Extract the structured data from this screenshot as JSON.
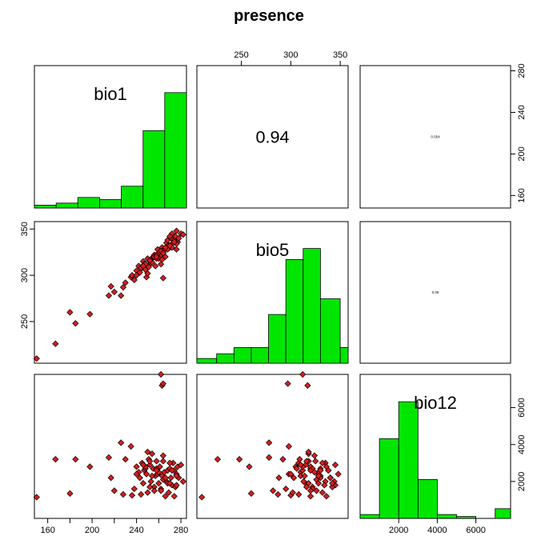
{
  "chart_data": {
    "type": "scatter",
    "title": "presence",
    "variables": [
      "bio1",
      "bio5",
      "bio12"
    ],
    "correlations": [
      {
        "row": 0,
        "col": 1,
        "label": "0.94",
        "value": 0.94
      },
      {
        "row": 0,
        "col": 2,
        "label": "0.054",
        "value": 0.054
      },
      {
        "row": 1,
        "col": 2,
        "label": "0.09",
        "value": 0.09
      }
    ],
    "axes": {
      "bio1": {
        "range": [
          148,
          285
        ],
        "ticks": [
          160,
          200,
          240,
          280
        ],
        "tick_labels": [
          "160",
          "200",
          "240",
          "280"
        ],
        "minor_ticks": [
          180,
          220,
          260
        ]
      },
      "bio5": {
        "range": [
          205,
          358
        ],
        "ticks": [
          250,
          300,
          350
        ],
        "tick_labels": [
          "250",
          "300",
          "350"
        ]
      },
      "bio12": {
        "range": [
          0,
          7800
        ],
        "ticks": [
          2000,
          4000,
          6000
        ],
        "tick_labels": [
          "2000",
          "4000",
          "6000"
        ]
      }
    },
    "tick_sides": {
      "top": "bio5",
      "right_row0": "bio1",
      "left_row1": "bio5",
      "right_row2": "bio12",
      "bottom_col0": "bio1",
      "bottom_col2": "bio12"
    },
    "histograms": {
      "bio1": {
        "bin_edges": [
          148,
          167.6,
          187.1,
          206.7,
          226.3,
          245.9,
          265.4,
          285
        ],
        "heights": [
          0.4,
          0.7,
          1.5,
          1.2,
          3.1,
          11.0,
          16.4
        ]
      },
      "bio5": {
        "bin_edges": [
          205,
          225,
          242.5,
          260,
          277.5,
          295,
          312.5,
          330,
          350,
          358
        ],
        "heights": [
          0.3,
          0.6,
          1.0,
          1.0,
          3.1,
          6.6,
          7.3,
          4.1,
          1.0
        ]
      },
      "bio12": {
        "bin_edges": [
          0,
          1000,
          2000,
          3000,
          4000,
          5000,
          6000,
          7000,
          7800
        ],
        "heights": [
          0.2,
          4.1,
          6.0,
          2.0,
          0.2,
          0.1,
          0,
          0.5
        ]
      }
    },
    "points": {
      "bio1": [
        150,
        167,
        180,
        185,
        198,
        215,
        217,
        220,
        226,
        228,
        230,
        235,
        236,
        238,
        240,
        242,
        243,
        245,
        246,
        247,
        248,
        249,
        250,
        251,
        252,
        253,
        254,
        255,
        256,
        257,
        258,
        259,
        260,
        261,
        262,
        263,
        264,
        265,
        266,
        267,
        268,
        269,
        270,
        271,
        272,
        273,
        274,
        275,
        276,
        277,
        278,
        280,
        282,
        240,
        244,
        248,
        252,
        256,
        260,
        264,
        268,
        272,
        276,
        250,
        254,
        258,
        262,
        266,
        270,
        274,
        246,
        252,
        258,
        264,
        270,
        276,
        262,
        263,
        264
      ],
      "bio5": [
        210,
        226,
        260,
        248,
        258,
        278,
        288,
        282,
        278,
        287,
        292,
        298,
        300,
        295,
        305,
        310,
        303,
        308,
        315,
        312,
        306,
        298,
        302,
        309,
        315,
        313,
        318,
        320,
        322,
        310,
        318,
        328,
        318,
        320,
        322,
        330,
        325,
        328,
        320,
        335,
        338,
        332,
        330,
        340,
        345,
        335,
        338,
        342,
        348,
        336,
        340,
        345,
        344,
        300,
        308,
        312,
        316,
        320,
        324,
        326,
        328,
        330,
        334,
        318,
        314,
        322,
        326,
        330,
        332,
        336,
        310,
        316,
        320,
        324,
        342,
        328,
        312,
        317,
        297
      ],
      "bio12": [
        1150,
        3200,
        1350,
        3200,
        2800,
        3300,
        2200,
        1500,
        4100,
        1300,
        3200,
        3900,
        1250,
        1600,
        2800,
        2500,
        2200,
        3000,
        1900,
        2600,
        2700,
        2400,
        1400,
        3200,
        2900,
        2000,
        3500,
        2700,
        1700,
        2300,
        3100,
        2400,
        1900,
        2800,
        1600,
        2300,
        3100,
        2500,
        1200,
        2000,
        2600,
        1400,
        2700,
        2200,
        1800,
        3000,
        2600,
        1700,
        2400,
        2800,
        2200,
        2900,
        2000,
        2400,
        1300,
        2800,
        3100,
        1500,
        2500,
        2100,
        1900,
        2600,
        1800,
        3600,
        2300,
        2700,
        1500,
        2200,
        3000,
        1200,
        2900,
        1700,
        2600,
        3400,
        1900,
        2300,
        7800,
        7200,
        7300
      ]
    },
    "point_color": "#d71e1e",
    "histogram_color": "#00e600"
  }
}
